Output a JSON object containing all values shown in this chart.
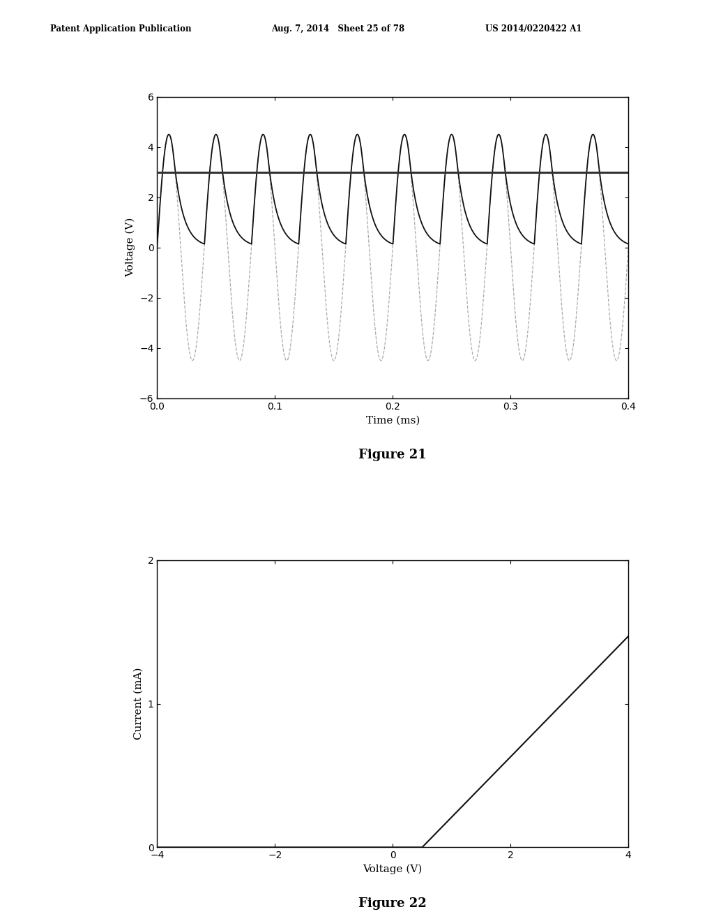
{
  "fig21": {
    "xlabel": "Time (ms)",
    "ylabel": "Voltage (V)",
    "xlim": [
      0.0,
      0.4
    ],
    "ylim": [
      -6,
      6
    ],
    "yticks": [
      -6,
      -4,
      -2,
      0,
      2,
      4,
      6
    ],
    "xticks": [
      0.0,
      0.1,
      0.2,
      0.3,
      0.4
    ],
    "sine_amplitude": 4.5,
    "sine_freq_hz": 25000,
    "dc_level": 3.0,
    "rc_tau": 8e-06
  },
  "fig22": {
    "xlabel": "Voltage (V)",
    "ylabel": "Current (mA)",
    "xlim": [
      -4,
      4
    ],
    "ylim": [
      0,
      2
    ],
    "xticks": [
      -4,
      -2,
      0,
      2,
      4
    ],
    "yticks": [
      0,
      1,
      2
    ],
    "threshold_v": 0.5,
    "slope": 0.42
  },
  "header_left": "Patent Application Publication",
  "header_mid": "Aug. 7, 2014   Sheet 25 of 78",
  "header_right": "US 2014/0220422 A1",
  "caption21": "Figure 21",
  "caption22": "Figure 22",
  "bg": "#ffffff",
  "sine_color": "#aaaaaa",
  "rect_color": "#111111",
  "dc_color": "#333333",
  "iv_color": "#111111"
}
